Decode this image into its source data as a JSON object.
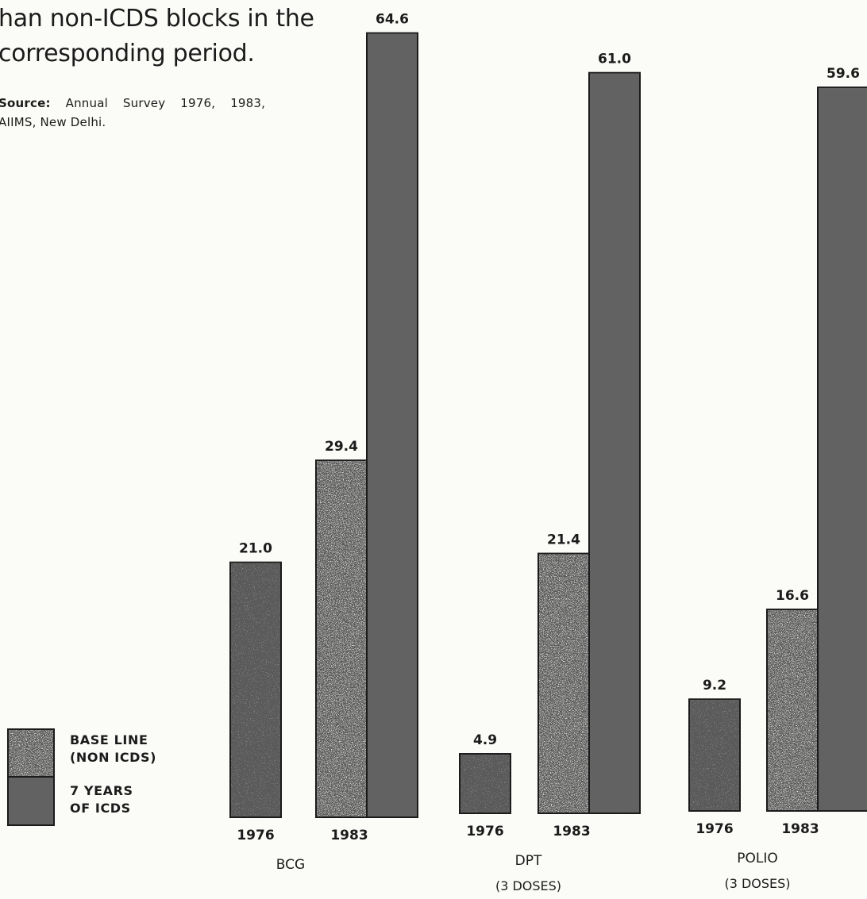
{
  "intro": {
    "line1": "han non-ICDS blocks in the",
    "line2": "corresponding period."
  },
  "source": {
    "label": "Source:",
    "line1": "Annual Survey 1976, 1983,",
    "line2": "AIIMS, New Delhi."
  },
  "legend": [
    {
      "line1": "BASE LINE",
      "line2": "(NON ICDS)",
      "pattern": "light-speckle"
    },
    {
      "line1": "7 YEARS",
      "line2": "OF ICDS",
      "pattern": "dark-speckle"
    }
  ],
  "colors": {
    "ink": "#1b1b1b",
    "paper": "#fbfbf8"
  },
  "chart_data": {
    "type": "bar",
    "title": "",
    "xlabel": "",
    "ylabel": "",
    "ylim": [
      0,
      70
    ],
    "grid": false,
    "legend_position": "bottom-left",
    "groups": [
      {
        "label": "BCG",
        "sublabel": "",
        "bars": [
          {
            "year": "1976",
            "values": [
              {
                "series": "BASE LINE (NON ICDS)",
                "value": 21.0
              }
            ]
          },
          {
            "year": "1983",
            "values": [
              {
                "series": "BASE LINE (NON ICDS)",
                "value": 29.4
              },
              {
                "series": "7 YEARS OF ICDS",
                "value": 64.6
              }
            ]
          }
        ]
      },
      {
        "label": "DPT",
        "sublabel": "(3 DOSES)",
        "bars": [
          {
            "year": "1976",
            "values": [
              {
                "series": "BASE LINE (NON ICDS)",
                "value": 4.9
              }
            ]
          },
          {
            "year": "1983",
            "values": [
              {
                "series": "BASE LINE (NON ICDS)",
                "value": 21.4
              },
              {
                "series": "7 YEARS OF ICDS",
                "value": 61.0
              }
            ]
          }
        ]
      },
      {
        "label": "POLIO",
        "sublabel": "(3 DOSES)",
        "bars": [
          {
            "year": "1976",
            "values": [
              {
                "series": "BASE LINE (NON ICDS)",
                "value": 9.2
              }
            ]
          },
          {
            "year": "1983",
            "values": [
              {
                "series": "BASE LINE (NON ICDS)",
                "value": 16.6
              },
              {
                "series": "7 YEARS OF ICDS",
                "value": 59.6
              }
            ]
          }
        ]
      }
    ],
    "value_labels": [
      "21.0",
      "29.4",
      "64.6",
      "4.9",
      "21.4",
      "61.0",
      "9.2",
      "16.6",
      "59.6"
    ]
  }
}
